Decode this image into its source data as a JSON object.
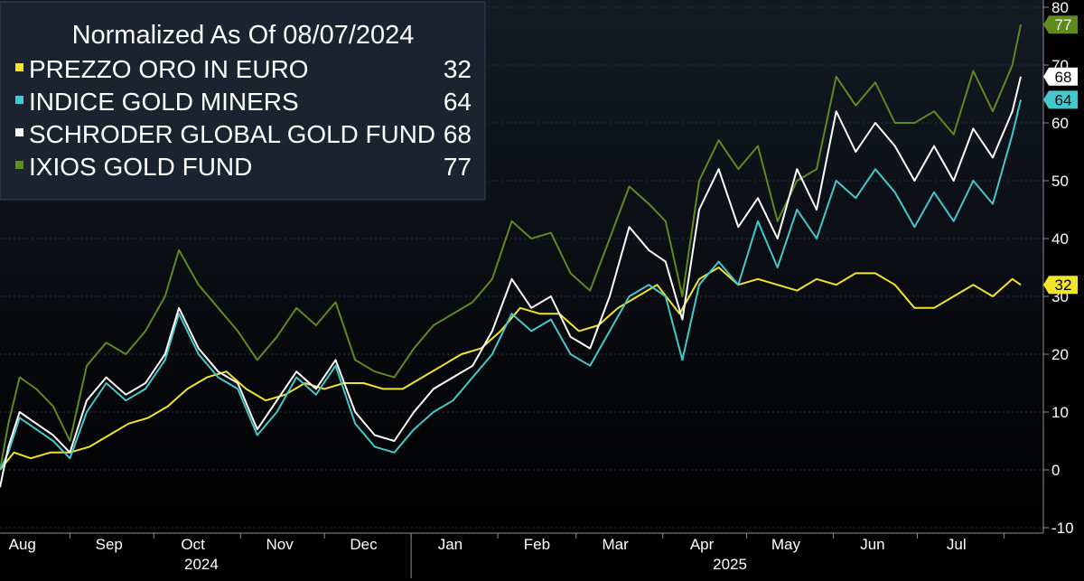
{
  "colors": {
    "background_top": "#141a24",
    "background_bottom": "#000000",
    "legend_bg": "#1b2230",
    "grid": "#2d3442",
    "axis_text": "#ffffff"
  },
  "legend": {
    "title": "Normalized As Of 08/07/2024",
    "items": [
      {
        "name": "PREZZO ORO IN EURO",
        "value": "32",
        "color": "#f2e42a"
      },
      {
        "name": "INDICE GOLD MINERS",
        "value": "64",
        "color": "#45c8cc"
      },
      {
        "name": "SCHRODER GLOBAL GOLD FUND",
        "value": "68",
        "color": "#ffffff"
      },
      {
        "name": "IXIOS GOLD FUND",
        "value": "77",
        "color": "#5e8a1e"
      }
    ]
  },
  "chart_data": {
    "type": "line",
    "title": "Normalized As Of 08/07/2024",
    "x_range": [
      "2024-08-07",
      "2025-08-07"
    ],
    "y_ticks": [
      -10,
      0,
      10,
      20,
      30,
      40,
      50,
      60,
      70,
      80
    ],
    "ylim": [
      -12,
      80
    ],
    "grid": true,
    "x_month_labels": [
      {
        "label": "Aug",
        "date": "2024-08-15"
      },
      {
        "label": "Sep",
        "date": "2024-09-15"
      },
      {
        "label": "Oct",
        "date": "2024-10-15"
      },
      {
        "label": "Nov",
        "date": "2024-11-15"
      },
      {
        "label": "Dec",
        "date": "2024-12-15"
      },
      {
        "label": "Jan",
        "date": "2025-01-15"
      },
      {
        "label": "Feb",
        "date": "2025-02-15"
      },
      {
        "label": "Mar",
        "date": "2025-03-15"
      },
      {
        "label": "Apr",
        "date": "2025-04-15"
      },
      {
        "label": "May",
        "date": "2025-05-15"
      },
      {
        "label": "Jun",
        "date": "2025-06-15"
      },
      {
        "label": "Jul",
        "date": "2025-07-15"
      }
    ],
    "x_year_labels": [
      {
        "label": "2024",
        "date": "2024-10-18"
      },
      {
        "label": "2025",
        "date": "2025-04-25"
      }
    ],
    "year_divider_date": "2025-01-01",
    "series": [
      {
        "name": "PREZZO ORO IN EURO",
        "color": "#f2e42a",
        "last_value": 32,
        "points": [
          [
            "2024-08-07",
            0
          ],
          [
            "2024-08-12",
            3
          ],
          [
            "2024-08-18",
            2
          ],
          [
            "2024-08-25",
            3
          ],
          [
            "2024-09-01",
            3
          ],
          [
            "2024-09-08",
            4
          ],
          [
            "2024-09-15",
            6
          ],
          [
            "2024-09-22",
            8
          ],
          [
            "2024-09-29",
            9
          ],
          [
            "2024-10-06",
            11
          ],
          [
            "2024-10-13",
            14
          ],
          [
            "2024-10-20",
            16
          ],
          [
            "2024-10-27",
            17
          ],
          [
            "2024-11-03",
            14
          ],
          [
            "2024-11-10",
            12
          ],
          [
            "2024-11-17",
            13
          ],
          [
            "2024-11-24",
            15
          ],
          [
            "2024-12-01",
            14
          ],
          [
            "2024-12-08",
            15
          ],
          [
            "2024-12-15",
            15
          ],
          [
            "2024-12-22",
            14
          ],
          [
            "2024-12-29",
            14
          ],
          [
            "2025-01-05",
            16
          ],
          [
            "2025-01-12",
            18
          ],
          [
            "2025-01-19",
            20
          ],
          [
            "2025-01-26",
            21
          ],
          [
            "2025-02-02",
            24
          ],
          [
            "2025-02-09",
            28
          ],
          [
            "2025-02-16",
            27
          ],
          [
            "2025-02-23",
            27
          ],
          [
            "2025-03-02",
            24
          ],
          [
            "2025-03-09",
            25
          ],
          [
            "2025-03-16",
            28
          ],
          [
            "2025-03-23",
            30
          ],
          [
            "2025-03-30",
            32
          ],
          [
            "2025-04-07",
            27
          ],
          [
            "2025-04-14",
            33
          ],
          [
            "2025-04-21",
            35
          ],
          [
            "2025-04-28",
            32
          ],
          [
            "2025-05-05",
            33
          ],
          [
            "2025-05-12",
            32
          ],
          [
            "2025-05-19",
            31
          ],
          [
            "2025-05-26",
            33
          ],
          [
            "2025-06-02",
            32
          ],
          [
            "2025-06-09",
            34
          ],
          [
            "2025-06-16",
            34
          ],
          [
            "2025-06-23",
            32
          ],
          [
            "2025-06-30",
            28
          ],
          [
            "2025-07-07",
            28
          ],
          [
            "2025-07-14",
            30
          ],
          [
            "2025-07-21",
            32
          ],
          [
            "2025-07-28",
            30
          ],
          [
            "2025-08-04",
            33
          ],
          [
            "2025-08-07",
            32
          ]
        ]
      },
      {
        "name": "INDICE GOLD MINERS",
        "color": "#45c8cc",
        "last_value": 64,
        "points": [
          [
            "2024-08-07",
            0
          ],
          [
            "2024-08-10",
            3
          ],
          [
            "2024-08-14",
            9
          ],
          [
            "2024-08-20",
            7
          ],
          [
            "2024-08-26",
            5
          ],
          [
            "2024-09-01",
            2
          ],
          [
            "2024-09-07",
            10
          ],
          [
            "2024-09-14",
            15
          ],
          [
            "2024-09-21",
            12
          ],
          [
            "2024-09-28",
            14
          ],
          [
            "2024-10-05",
            19
          ],
          [
            "2024-10-10",
            27
          ],
          [
            "2024-10-17",
            20
          ],
          [
            "2024-10-24",
            16
          ],
          [
            "2024-10-31",
            14
          ],
          [
            "2024-11-07",
            6
          ],
          [
            "2024-11-14",
            10
          ],
          [
            "2024-11-21",
            16
          ],
          [
            "2024-11-28",
            13
          ],
          [
            "2024-12-05",
            18
          ],
          [
            "2024-12-12",
            8
          ],
          [
            "2024-12-19",
            4
          ],
          [
            "2024-12-26",
            3
          ],
          [
            "2025-01-02",
            7
          ],
          [
            "2025-01-09",
            10
          ],
          [
            "2025-01-16",
            12
          ],
          [
            "2025-01-23",
            16
          ],
          [
            "2025-01-30",
            20
          ],
          [
            "2025-02-06",
            27
          ],
          [
            "2025-02-13",
            24
          ],
          [
            "2025-02-20",
            26
          ],
          [
            "2025-02-27",
            20
          ],
          [
            "2025-03-06",
            18
          ],
          [
            "2025-03-13",
            24
          ],
          [
            "2025-03-20",
            30
          ],
          [
            "2025-03-27",
            32
          ],
          [
            "2025-04-02",
            30
          ],
          [
            "2025-04-08",
            19
          ],
          [
            "2025-04-14",
            32
          ],
          [
            "2025-04-21",
            36
          ],
          [
            "2025-04-28",
            32
          ],
          [
            "2025-05-05",
            43
          ],
          [
            "2025-05-12",
            35
          ],
          [
            "2025-05-19",
            45
          ],
          [
            "2025-05-26",
            40
          ],
          [
            "2025-06-02",
            50
          ],
          [
            "2025-06-09",
            47
          ],
          [
            "2025-06-16",
            52
          ],
          [
            "2025-06-23",
            48
          ],
          [
            "2025-06-30",
            42
          ],
          [
            "2025-07-07",
            48
          ],
          [
            "2025-07-14",
            43
          ],
          [
            "2025-07-21",
            50
          ],
          [
            "2025-07-28",
            46
          ],
          [
            "2025-08-04",
            58
          ],
          [
            "2025-08-07",
            64
          ]
        ]
      },
      {
        "name": "SCHRODER GLOBAL GOLD FUND",
        "color": "#ffffff",
        "last_value": 68,
        "points": [
          [
            "2024-08-07",
            -3
          ],
          [
            "2024-08-10",
            4
          ],
          [
            "2024-08-14",
            10
          ],
          [
            "2024-08-20",
            8
          ],
          [
            "2024-08-26",
            6
          ],
          [
            "2024-09-01",
            3
          ],
          [
            "2024-09-07",
            12
          ],
          [
            "2024-09-14",
            16
          ],
          [
            "2024-09-21",
            13
          ],
          [
            "2024-09-28",
            15
          ],
          [
            "2024-10-05",
            20
          ],
          [
            "2024-10-10",
            28
          ],
          [
            "2024-10-17",
            21
          ],
          [
            "2024-10-24",
            17
          ],
          [
            "2024-10-31",
            15
          ],
          [
            "2024-11-07",
            7
          ],
          [
            "2024-11-14",
            12
          ],
          [
            "2024-11-21",
            17
          ],
          [
            "2024-11-28",
            14
          ],
          [
            "2024-12-05",
            19
          ],
          [
            "2024-12-12",
            10
          ],
          [
            "2024-12-19",
            6
          ],
          [
            "2024-12-26",
            5
          ],
          [
            "2025-01-02",
            10
          ],
          [
            "2025-01-09",
            14
          ],
          [
            "2025-01-16",
            16
          ],
          [
            "2025-01-23",
            18
          ],
          [
            "2025-01-30",
            24
          ],
          [
            "2025-02-06",
            33
          ],
          [
            "2025-02-13",
            28
          ],
          [
            "2025-02-20",
            30
          ],
          [
            "2025-02-27",
            23
          ],
          [
            "2025-03-06",
            21
          ],
          [
            "2025-03-13",
            30
          ],
          [
            "2025-03-20",
            42
          ],
          [
            "2025-03-27",
            38
          ],
          [
            "2025-04-02",
            36
          ],
          [
            "2025-04-08",
            26
          ],
          [
            "2025-04-14",
            45
          ],
          [
            "2025-04-21",
            52
          ],
          [
            "2025-04-28",
            42
          ],
          [
            "2025-05-05",
            47
          ],
          [
            "2025-05-12",
            40
          ],
          [
            "2025-05-19",
            52
          ],
          [
            "2025-05-26",
            45
          ],
          [
            "2025-06-02",
            62
          ],
          [
            "2025-06-09",
            55
          ],
          [
            "2025-06-16",
            60
          ],
          [
            "2025-06-23",
            56
          ],
          [
            "2025-06-30",
            50
          ],
          [
            "2025-07-07",
            56
          ],
          [
            "2025-07-14",
            50
          ],
          [
            "2025-07-21",
            59
          ],
          [
            "2025-07-28",
            54
          ],
          [
            "2025-08-04",
            62
          ],
          [
            "2025-08-07",
            68
          ]
        ]
      },
      {
        "name": "IXIOS GOLD FUND",
        "color": "#5e8a1e",
        "last_value": 77,
        "points": [
          [
            "2024-08-07",
            0
          ],
          [
            "2024-08-10",
            8
          ],
          [
            "2024-08-14",
            16
          ],
          [
            "2024-08-20",
            14
          ],
          [
            "2024-08-26",
            11
          ],
          [
            "2024-09-01",
            5
          ],
          [
            "2024-09-07",
            18
          ],
          [
            "2024-09-14",
            22
          ],
          [
            "2024-09-21",
            20
          ],
          [
            "2024-09-28",
            24
          ],
          [
            "2024-10-05",
            30
          ],
          [
            "2024-10-10",
            38
          ],
          [
            "2024-10-17",
            32
          ],
          [
            "2024-10-24",
            28
          ],
          [
            "2024-10-31",
            24
          ],
          [
            "2024-11-07",
            19
          ],
          [
            "2024-11-14",
            23
          ],
          [
            "2024-11-21",
            28
          ],
          [
            "2024-11-28",
            25
          ],
          [
            "2024-12-05",
            29
          ],
          [
            "2024-12-12",
            19
          ],
          [
            "2024-12-19",
            17
          ],
          [
            "2024-12-26",
            16
          ],
          [
            "2025-01-02",
            21
          ],
          [
            "2025-01-09",
            25
          ],
          [
            "2025-01-16",
            27
          ],
          [
            "2025-01-23",
            29
          ],
          [
            "2025-01-30",
            33
          ],
          [
            "2025-02-06",
            43
          ],
          [
            "2025-02-13",
            40
          ],
          [
            "2025-02-20",
            41
          ],
          [
            "2025-02-27",
            34
          ],
          [
            "2025-03-06",
            31
          ],
          [
            "2025-03-13",
            40
          ],
          [
            "2025-03-20",
            49
          ],
          [
            "2025-03-27",
            46
          ],
          [
            "2025-04-02",
            43
          ],
          [
            "2025-04-08",
            30
          ],
          [
            "2025-04-14",
            50
          ],
          [
            "2025-04-21",
            57
          ],
          [
            "2025-04-28",
            52
          ],
          [
            "2025-05-05",
            56
          ],
          [
            "2025-05-12",
            43
          ],
          [
            "2025-05-19",
            50
          ],
          [
            "2025-05-26",
            52
          ],
          [
            "2025-06-02",
            68
          ],
          [
            "2025-06-09",
            63
          ],
          [
            "2025-06-16",
            67
          ],
          [
            "2025-06-23",
            60
          ],
          [
            "2025-06-30",
            60
          ],
          [
            "2025-07-07",
            62
          ],
          [
            "2025-07-14",
            58
          ],
          [
            "2025-07-21",
            69
          ],
          [
            "2025-07-28",
            62
          ],
          [
            "2025-08-04",
            70
          ],
          [
            "2025-08-07",
            77
          ]
        ]
      }
    ]
  }
}
